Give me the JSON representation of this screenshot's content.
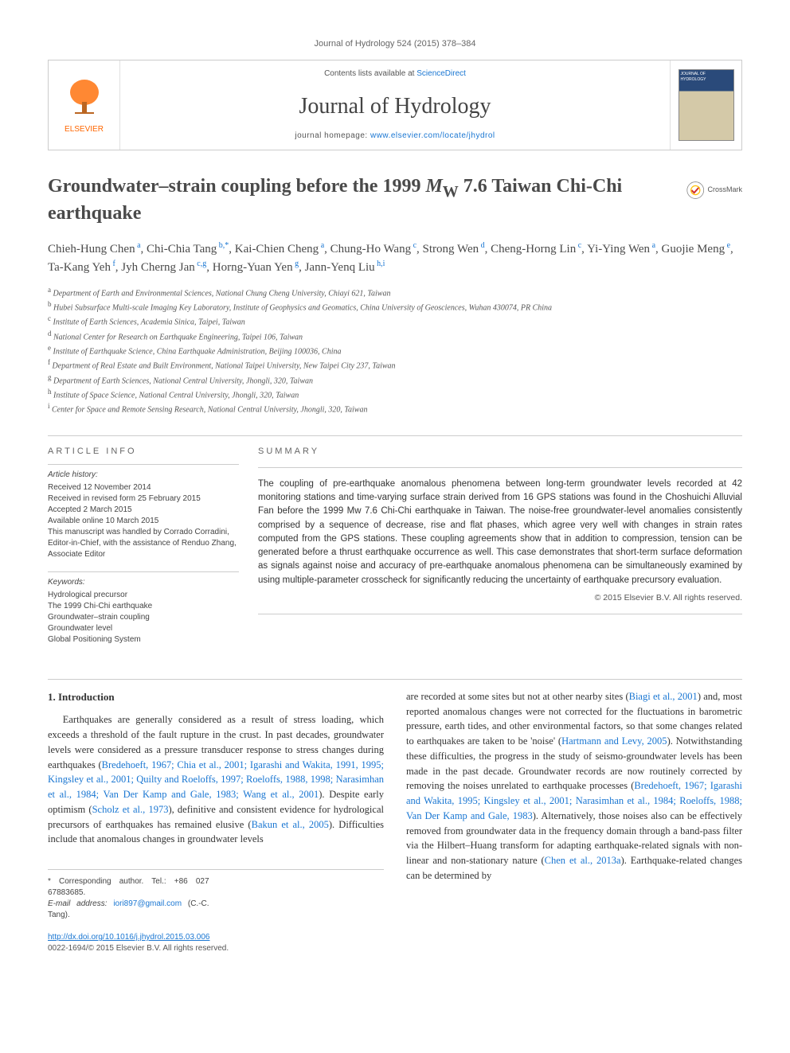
{
  "journalRef": "Journal of Hydrology 524 (2015) 378–384",
  "header": {
    "elsevier": "ELSEVIER",
    "contentsPrefix": "Contents lists available at ",
    "contentsLink": "ScienceDirect",
    "journalName": "Journal of Hydrology",
    "homepagePrefix": "journal homepage: ",
    "homepageUrl": "www.elsevier.com/locate/jhydrol",
    "coverLabel": "JOURNAL OF HYDROLOGY"
  },
  "crossmark": "CrossMark",
  "title": {
    "pre": "Groundwater–strain coupling before the 1999 ",
    "mw": "M",
    "sub": "W",
    "post": " 7.6 Taiwan Chi-Chi earthquake"
  },
  "authors": [
    {
      "name": "Chieh-Hung Chen",
      "sup": "a"
    },
    {
      "name": "Chi-Chia Tang",
      "sup": "b,*"
    },
    {
      "name": "Kai-Chien Cheng",
      "sup": "a"
    },
    {
      "name": "Chung-Ho Wang",
      "sup": "c"
    },
    {
      "name": "Strong Wen",
      "sup": "d"
    },
    {
      "name": "Cheng-Horng Lin",
      "sup": "c"
    },
    {
      "name": "Yi-Ying Wen",
      "sup": "a"
    },
    {
      "name": "Guojie Meng",
      "sup": "e"
    },
    {
      "name": "Ta-Kang Yeh",
      "sup": "f"
    },
    {
      "name": "Jyh Cherng Jan",
      "sup": "c,g"
    },
    {
      "name": "Horng-Yuan Yen",
      "sup": "g"
    },
    {
      "name": "Jann-Yenq Liu",
      "sup": "h,i"
    }
  ],
  "affiliations": [
    {
      "key": "a",
      "text": "Department of Earth and Environmental Sciences, National Chung Cheng University, Chiayi 621, Taiwan"
    },
    {
      "key": "b",
      "text": "Hubei Subsurface Multi-scale Imaging Key Laboratory, Institute of Geophysics and Geomatics, China University of Geosciences, Wuhan 430074, PR China"
    },
    {
      "key": "c",
      "text": "Institute of Earth Sciences, Academia Sinica, Taipei, Taiwan"
    },
    {
      "key": "d",
      "text": "National Center for Research on Earthquake Engineering, Taipei 106, Taiwan"
    },
    {
      "key": "e",
      "text": "Institute of Earthquake Science, China Earthquake Administration, Beijing 100036, China"
    },
    {
      "key": "f",
      "text": "Department of Real Estate and Built Environment, National Taipei University, New Taipei City 237, Taiwan"
    },
    {
      "key": "g",
      "text": "Department of Earth Sciences, National Central University, Jhongli, 320, Taiwan"
    },
    {
      "key": "h",
      "text": "Institute of Space Science, National Central University, Jhongli, 320, Taiwan"
    },
    {
      "key": "i",
      "text": "Center for Space and Remote Sensing Research, National Central University, Jhongli, 320, Taiwan"
    }
  ],
  "articleInfo": {
    "label": "ARTICLE INFO",
    "historyLabel": "Article history:",
    "history": [
      "Received 12 November 2014",
      "Received in revised form 25 February 2015",
      "Accepted 2 March 2015",
      "Available online 10 March 2015",
      "This manuscript was handled by Corrado Corradini, Editor-in-Chief, with the assistance of Renduo Zhang, Associate Editor"
    ],
    "keywordsLabel": "Keywords:",
    "keywords": [
      "Hydrological precursor",
      "The 1999 Chi-Chi earthquake",
      "Groundwater–strain coupling",
      "Groundwater level",
      "Global Positioning System"
    ]
  },
  "summary": {
    "label": "SUMMARY",
    "text": "The coupling of pre-earthquake anomalous phenomena between long-term groundwater levels recorded at 42 monitoring stations and time-varying surface strain derived from 16 GPS stations was found in the Choshuichi Alluvial Fan before the 1999 Mw 7.6 Chi-Chi earthquake in Taiwan. The noise-free groundwater-level anomalies consistently comprised by a sequence of decrease, rise and flat phases, which agree very well with changes in strain rates computed from the GPS stations. These coupling agreements show that in addition to compression, tension can be generated before a thrust earthquake occurrence as well. This case demonstrates that short-term surface deformation as signals against noise and accuracy of pre-earthquake anomalous phenomena can be simultaneously examined by using multiple-parameter crosscheck for significantly reducing the uncertainty of earthquake precursory evaluation.",
    "copyright": "© 2015 Elsevier B.V. All rights reserved."
  },
  "intro": {
    "heading": "1. Introduction",
    "col1": {
      "p1a": "Earthquakes are generally considered as a result of stress loading, which exceeds a threshold of the fault rupture in the crust. In past decades, groundwater levels were considered as a pressure transducer response to stress changes during earthquakes (",
      "p1ref1": "Bredehoeft, 1967; Chia et al., 2001; Igarashi and Wakita, 1991, 1995; Kingsley et al., 2001; Quilty and Roeloffs, 1997; Roeloffs, 1988, 1998; Narasimhan et al., 1984; Van Der Kamp and Gale, 1983; Wang et al., 2001",
      "p1b": "). Despite early optimism (",
      "p1ref2": "Scholz et al., 1973",
      "p1c": "), definitive and consistent evidence for hydrological precursors of earthquakes has remained elusive (",
      "p1ref3": "Bakun et al., 2005",
      "p1d": "). Difficulties include that anomalous changes in groundwater levels"
    },
    "col2": {
      "p1a": "are recorded at some sites but not at other nearby sites (",
      "p1ref1": "Biagi et al., 2001",
      "p1b": ") and, most reported anomalous changes were not corrected for the fluctuations in barometric pressure, earth tides, and other environmental factors, so that some changes related to earthquakes are taken to be 'noise' (",
      "p1ref2": "Hartmann and Levy, 2005",
      "p1c": "). Notwithstanding these difficulties, the progress in the study of seismo-groundwater levels has been made in the past decade. Groundwater records are now routinely corrected by removing the noises unrelated to earthquake processes (",
      "p1ref3": "Bredehoeft, 1967; Igarashi and Wakita, 1995; Kingsley et al., 2001; Narasimhan et al., 1984; Roeloffs, 1988; Van Der Kamp and Gale, 1983",
      "p1d": "). Alternatively, those noises also can be effectively removed from groundwater data in the frequency domain through a band-pass filter via the Hilbert–Huang transform for adapting earthquake-related signals with non-linear and non-stationary nature (",
      "p1ref4": "Chen et al., 2013a",
      "p1e": "). Earthquake-related changes can be determined by"
    }
  },
  "footer": {
    "corr": "* Corresponding author. Tel.: +86 027 67883685.",
    "emailLabel": "E-mail address: ",
    "email": "iori897@gmail.com",
    "emailSuffix": " (C.-C. Tang).",
    "doi": "http://dx.doi.org/10.1016/j.jhydrol.2015.03.006",
    "issn": "0022-1694/© 2015 Elsevier B.V. All rights reserved."
  },
  "colors": {
    "link": "#1976d2",
    "orange": "#ff6600",
    "text": "#333333",
    "muted": "#666666",
    "border": "#cccccc"
  },
  "typography": {
    "title_fontsize": 24,
    "journal_fontsize": 28,
    "body_fontsize": 12.5,
    "summary_fontsize": 11.5,
    "small_fontsize": 10
  }
}
